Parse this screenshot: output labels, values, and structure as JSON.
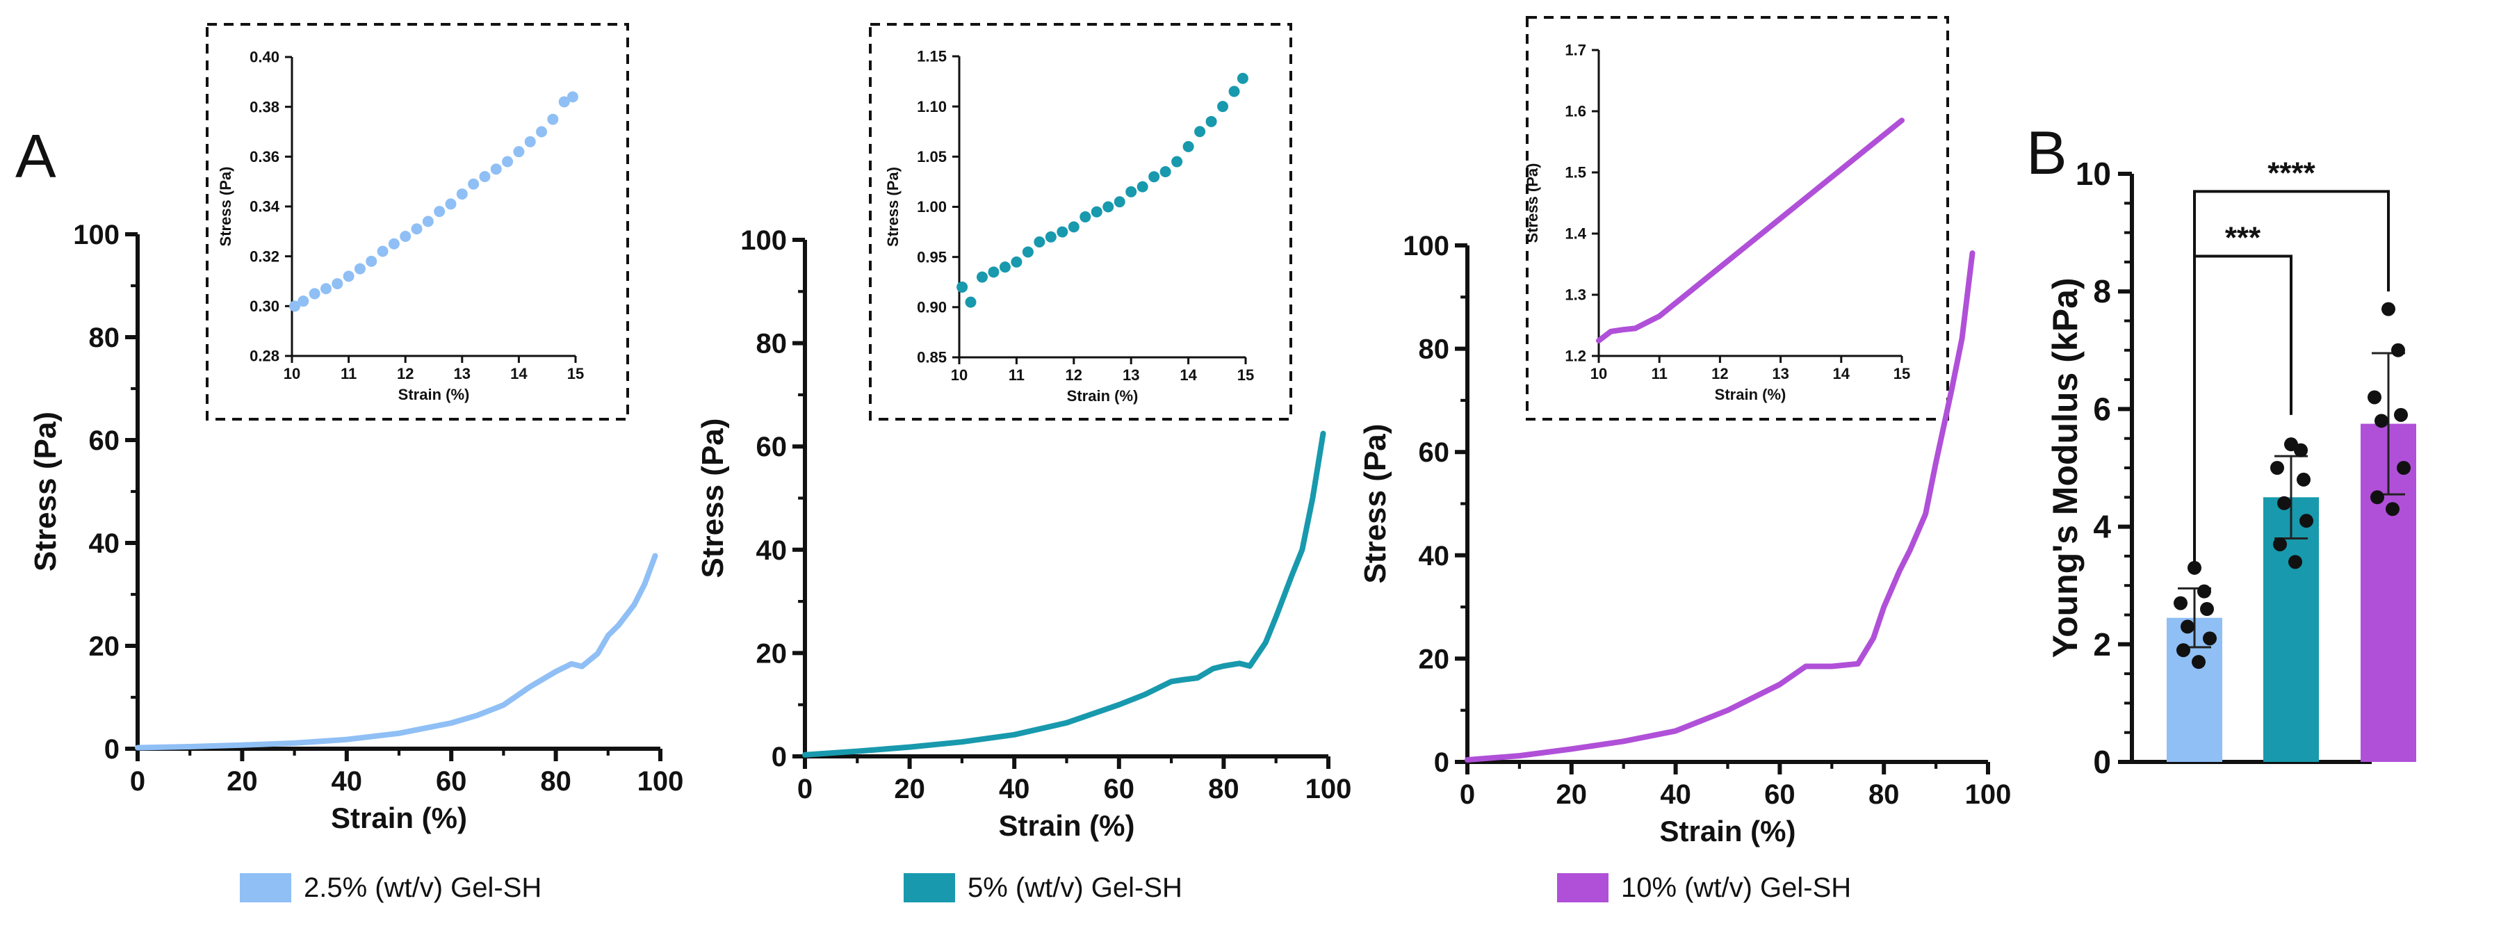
{
  "panels": {
    "A": {
      "letter": "A"
    },
    "B": {
      "letter": "B"
    }
  },
  "colors": {
    "g25": "#8fbff5",
    "g5": "#1899ad",
    "g10": "#b050d8",
    "axis": "#111111"
  },
  "chart_data": [
    {
      "id": "main25",
      "type": "line",
      "xlabel": "Strain (%)",
      "ylabel": "Stress (Pa)",
      "xlim": [
        0,
        100
      ],
      "ylim": [
        0,
        100
      ],
      "xticks": [
        "0",
        "20",
        "40",
        "60",
        "80",
        "100"
      ],
      "yticks": [
        "0",
        "20",
        "40",
        "60",
        "80",
        "100"
      ],
      "series": [
        {
          "name": "2.5% (wt/v) Gel-SH",
          "color": "#8fbff5",
          "x": [
            0,
            10,
            20,
            30,
            40,
            50,
            60,
            65,
            70,
            75,
            80,
            83,
            85,
            88,
            90,
            92,
            95,
            97,
            99
          ],
          "y": [
            0.2,
            0.4,
            0.7,
            1.1,
            1.8,
            3.0,
            5.0,
            6.5,
            8.5,
            12,
            15,
            16.5,
            16,
            18.5,
            22,
            24,
            28,
            32,
            37.5
          ]
        }
      ]
    },
    {
      "id": "inset25",
      "type": "scatter",
      "xlabel": "Strain (%)",
      "ylabel": "Stress (Pa)",
      "xlim": [
        10,
        15
      ],
      "ylim": [
        0.28,
        0.4
      ],
      "xticks": [
        "10",
        "11",
        "12",
        "13",
        "14",
        "15"
      ],
      "yticks": [
        "0.28",
        "0.30",
        "0.32",
        "0.34",
        "0.36",
        "0.38",
        "0.40"
      ],
      "series": [
        {
          "name": "2.5% (wt/v) Gel-SH",
          "color": "#8fbff5",
          "x": [
            10.05,
            10.2,
            10.4,
            10.6,
            10.8,
            11.0,
            11.2,
            11.4,
            11.6,
            11.8,
            12.0,
            12.2,
            12.4,
            12.6,
            12.8,
            13.0,
            13.2,
            13.4,
            13.6,
            13.8,
            14.0,
            14.2,
            14.4,
            14.6,
            14.8,
            14.95
          ],
          "y": [
            0.3,
            0.302,
            0.305,
            0.307,
            0.309,
            0.312,
            0.315,
            0.318,
            0.322,
            0.325,
            0.328,
            0.331,
            0.334,
            0.338,
            0.341,
            0.345,
            0.349,
            0.352,
            0.355,
            0.358,
            0.362,
            0.366,
            0.37,
            0.375,
            0.382,
            0.384
          ]
        }
      ]
    },
    {
      "id": "main5",
      "type": "line",
      "xlabel": "Strain (%)",
      "ylabel": "Stress (Pa)",
      "xlim": [
        0,
        100
      ],
      "ylim": [
        0,
        100
      ],
      "xticks": [
        "0",
        "20",
        "40",
        "60",
        "80",
        "100"
      ],
      "yticks": [
        "0",
        "20",
        "40",
        "60",
        "80",
        "100"
      ],
      "series": [
        {
          "name": "5% (wt/v) Gel-SH",
          "color": "#1899ad",
          "x": [
            0,
            10,
            20,
            30,
            40,
            50,
            60,
            65,
            70,
            72,
            75,
            78,
            80,
            83,
            85,
            88,
            90,
            93,
            95,
            97,
            99
          ],
          "y": [
            0.3,
            1.0,
            1.8,
            2.8,
            4.2,
            6.5,
            10,
            12,
            14.5,
            14.8,
            15.2,
            17,
            17.5,
            18,
            17.5,
            22,
            27,
            35,
            40,
            50,
            62.5
          ]
        }
      ]
    },
    {
      "id": "inset5",
      "type": "scatter",
      "xlabel": "Strain (%)",
      "ylabel": "Stress (Pa)",
      "xlim": [
        10,
        15
      ],
      "ylim": [
        0.85,
        1.15
      ],
      "xticks": [
        "10",
        "11",
        "12",
        "13",
        "14",
        "15"
      ],
      "yticks": [
        "0.85",
        "0.90",
        "0.95",
        "1.00",
        "1.05",
        "1.10",
        "1.15"
      ],
      "series": [
        {
          "name": "5% (wt/v) Gel-SH",
          "color": "#1899ad",
          "x": [
            10.05,
            10.2,
            10.4,
            10.6,
            10.8,
            11.0,
            11.2,
            11.4,
            11.6,
            11.8,
            12.0,
            12.2,
            12.4,
            12.6,
            12.8,
            13.0,
            13.2,
            13.4,
            13.6,
            13.8,
            14.0,
            14.2,
            14.4,
            14.6,
            14.8,
            14.95
          ],
          "y": [
            0.92,
            0.905,
            0.93,
            0.935,
            0.94,
            0.945,
            0.955,
            0.965,
            0.97,
            0.975,
            0.98,
            0.99,
            0.995,
            1.0,
            1.005,
            1.015,
            1.02,
            1.03,
            1.035,
            1.045,
            1.06,
            1.075,
            1.085,
            1.1,
            1.115,
            1.128
          ]
        }
      ]
    },
    {
      "id": "main10",
      "type": "line",
      "xlabel": "Strain (%)",
      "ylabel": "Stress (Pa)",
      "xlim": [
        0,
        100
      ],
      "ylim": [
        0,
        100
      ],
      "xticks": [
        "0",
        "20",
        "40",
        "60",
        "80",
        "100"
      ],
      "yticks": [
        "0",
        "20",
        "40",
        "60",
        "80",
        "100"
      ],
      "series": [
        {
          "name": "10% (wt/v) Gel-SH",
          "color": "#b050d8",
          "x": [
            0,
            10,
            20,
            30,
            40,
            50,
            60,
            65,
            68,
            70,
            75,
            78,
            80,
            83,
            85,
            88,
            90,
            93,
            95,
            97
          ],
          "y": [
            0.4,
            1.2,
            2.5,
            4.0,
            6.0,
            10,
            15,
            18.5,
            18.5,
            18.5,
            19,
            24,
            30,
            37,
            41,
            48,
            58,
            72,
            82,
            98.5
          ]
        }
      ]
    },
    {
      "id": "inset10",
      "type": "line",
      "xlabel": "Strain (%)",
      "ylabel": "Stress (Pa)",
      "xlim": [
        10,
        15
      ],
      "ylim": [
        1.2,
        1.7
      ],
      "xticks": [
        "10",
        "11",
        "12",
        "13",
        "14",
        "15"
      ],
      "yticks": [
        "1.2",
        "1.3",
        "1.4",
        "1.5",
        "1.6",
        "1.7"
      ],
      "series": [
        {
          "name": "10% (wt/v) Gel-SH",
          "color": "#b050d8",
          "x": [
            10.0,
            10.2,
            10.4,
            10.6,
            10.8,
            11.0,
            11.5,
            12.0,
            12.5,
            13.0,
            13.5,
            14.0,
            14.5,
            15.0
          ],
          "y": [
            1.225,
            1.24,
            1.243,
            1.245,
            1.255,
            1.265,
            1.305,
            1.345,
            1.385,
            1.425,
            1.465,
            1.505,
            1.545,
            1.585
          ]
        }
      ]
    },
    {
      "id": "youngs",
      "type": "bar",
      "ylabel": "Young's Modulus (kPa)",
      "ylim": [
        0,
        10
      ],
      "yticks": [
        "0",
        "2",
        "4",
        "6",
        "8",
        "10"
      ],
      "categories": [
        "2.5% (wt/v) Gel-SH",
        "5% (wt/v) Gel-SH",
        "10% (wt/v) Gel-SH"
      ],
      "values": [
        2.45,
        4.5,
        5.75
      ],
      "error": [
        0.5,
        0.7,
        1.2
      ],
      "colors": [
        "#8fbff5",
        "#1899ad",
        "#b050d8"
      ],
      "points": [
        [
          3.3,
          2.9,
          2.7,
          2.6,
          2.3,
          2.1,
          1.9,
          1.7
        ],
        [
          5.4,
          5.3,
          5.0,
          4.8,
          4.4,
          4.1,
          3.7,
          3.4
        ],
        [
          7.7,
          7.0,
          6.2,
          5.9,
          5.8,
          5.0,
          4.5,
          4.3
        ]
      ],
      "significance": [
        {
          "from": 0,
          "to": 1,
          "label": "***"
        },
        {
          "from": 0,
          "to": 2,
          "label": "****"
        }
      ]
    }
  ],
  "legend": [
    "2.5% (wt/v) Gel-SH",
    "5% (wt/v) Gel-SH",
    "10% (wt/v) Gel-SH"
  ]
}
